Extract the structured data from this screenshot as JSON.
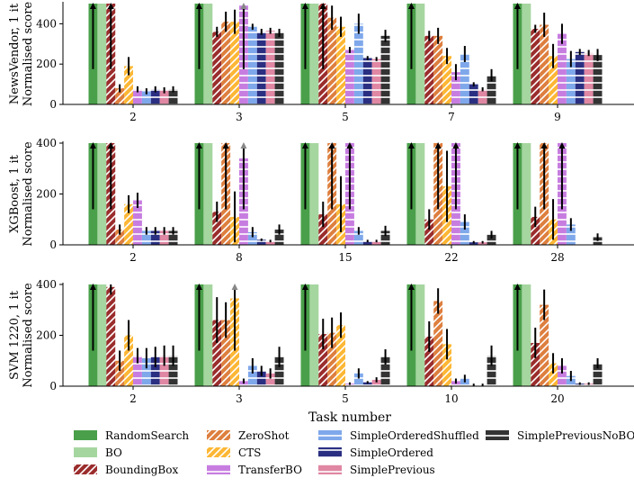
{
  "figure": {
    "xlabel": "Task number",
    "methods": [
      {
        "name": "RandomSearch",
        "color": "#4aa04a",
        "pattern": "solid"
      },
      {
        "name": "BO",
        "color": "#a6d6a0",
        "pattern": "solid"
      },
      {
        "name": "BoundingBox",
        "color": "#9b2d2d",
        "pattern": "diag"
      },
      {
        "name": "ZeroShot",
        "color": "#de7f3f",
        "pattern": "diag"
      },
      {
        "name": "CTS",
        "color": "#fdb735",
        "pattern": "diag"
      },
      {
        "name": "TransferBO",
        "color": "#c77de0",
        "pattern": "horiz"
      },
      {
        "name": "SimpleOrderedShuffled",
        "color": "#7fa8eb",
        "pattern": "horiz"
      },
      {
        "name": "SimpleOrdered",
        "color": "#2a2f82",
        "pattern": "horiz"
      },
      {
        "name": "SimplePrevious",
        "color": "#e087a3",
        "pattern": "horiz"
      },
      {
        "name": "SimplePreviousNoBO",
        "color": "#333333",
        "pattern": "horiz"
      }
    ],
    "clipped_marker_color": "#888888"
  },
  "chart_data": [
    {
      "type": "bar",
      "title": "",
      "ylabel": "NewsVendor, 1 it\nNormalised score",
      "xlabel": "",
      "ylim": [
        0,
        500
      ],
      "yticks": [
        0,
        200,
        400
      ],
      "categories": [
        "2",
        "3",
        "5",
        "7",
        "9"
      ],
      "series": [
        {
          "name": "RandomSearch",
          "values": [
            500,
            500,
            500,
            500,
            500
          ],
          "errors": [
            0,
            0,
            0,
            0,
            0
          ],
          "clipped": [
            true,
            true,
            true,
            true,
            true
          ]
        },
        {
          "name": "BO",
          "values": [
            500,
            500,
            500,
            500,
            500
          ],
          "errors": [
            0,
            0,
            0,
            0,
            0
          ],
          "clipped": [
            false,
            false,
            false,
            false,
            false
          ]
        },
        {
          "name": "BoundingBox",
          "values": [
            500,
            360,
            500,
            340,
            375
          ],
          "errors": [
            0,
            25,
            0,
            25,
            20
          ],
          "clipped": [
            true,
            false,
            true,
            false,
            false
          ]
        },
        {
          "name": "ZeroShot",
          "values": [
            80,
            410,
            430,
            340,
            395
          ],
          "errors": [
            20,
            50,
            60,
            40,
            60
          ],
          "clipped": [
            false,
            false,
            false,
            false,
            false
          ]
        },
        {
          "name": "CTS",
          "values": [
            190,
            410,
            385,
            240,
            240
          ],
          "errors": [
            45,
            60,
            50,
            40,
            60
          ],
          "clipped": [
            false,
            false,
            false,
            false,
            false
          ]
        },
        {
          "name": "TransferBO",
          "values": [
            75,
            490,
            270,
            160,
            350
          ],
          "errors": [
            15,
            0,
            15,
            40,
            50
          ],
          "clipped": [
            false,
            true,
            false,
            false,
            false
          ]
        },
        {
          "name": "SimpleOrderedShuffled",
          "values": [
            65,
            385,
            400,
            250,
            225
          ],
          "errors": [
            15,
            15,
            50,
            40,
            40
          ],
          "clipped": [
            false,
            false,
            false,
            false,
            false
          ]
        },
        {
          "name": "SimpleOrdered",
          "values": [
            75,
            360,
            230,
            100,
            260
          ],
          "errors": [
            15,
            15,
            10,
            10,
            15
          ],
          "clipped": [
            false,
            false,
            false,
            false,
            false
          ]
        },
        {
          "name": "SimplePrevious",
          "values": [
            70,
            365,
            225,
            75,
            255
          ],
          "errors": [
            15,
            15,
            10,
            10,
            15
          ],
          "clipped": [
            false,
            false,
            false,
            false,
            false
          ]
        },
        {
          "name": "SimplePreviousNoBO",
          "values": [
            75,
            355,
            340,
            145,
            245
          ],
          "errors": [
            15,
            20,
            30,
            30,
            30
          ],
          "clipped": [
            false,
            false,
            false,
            false,
            false
          ]
        }
      ]
    },
    {
      "type": "bar",
      "title": "",
      "ylabel": "XGBoost, 1 it\nNormalised score",
      "xlabel": "",
      "ylim": [
        0,
        400
      ],
      "yticks": [
        0,
        200,
        400
      ],
      "categories": [
        "2",
        "8",
        "15",
        "22",
        "28"
      ],
      "series": [
        {
          "name": "RandomSearch",
          "values": [
            400,
            400,
            400,
            400,
            400
          ],
          "errors": [
            0,
            0,
            0,
            0,
            0
          ],
          "clipped": [
            true,
            true,
            true,
            true,
            true
          ]
        },
        {
          "name": "BO",
          "values": [
            400,
            400,
            400,
            400,
            400
          ],
          "errors": [
            0,
            0,
            0,
            0,
            0
          ],
          "clipped": [
            false,
            false,
            false,
            false,
            false
          ]
        },
        {
          "name": "BoundingBox",
          "values": [
            400,
            130,
            120,
            100,
            110
          ],
          "errors": [
            0,
            40,
            50,
            40,
            40
          ],
          "clipped": [
            true,
            false,
            false,
            false,
            false
          ]
        },
        {
          "name": "ZeroShot",
          "values": [
            60,
            400,
            400,
            400,
            400
          ],
          "errors": [
            20,
            0,
            0,
            0,
            0
          ],
          "clipped": [
            false,
            true,
            true,
            true,
            true
          ]
        },
        {
          "name": "CTS",
          "values": [
            160,
            110,
            160,
            230,
            100
          ],
          "errors": [
            35,
            100,
            110,
            140,
            80
          ],
          "clipped": [
            false,
            false,
            false,
            false,
            false
          ]
        },
        {
          "name": "TransferBO",
          "values": [
            175,
            340,
            400,
            400,
            400
          ],
          "errors": [
            30,
            60,
            0,
            0,
            0
          ],
          "clipped": [
            false,
            true,
            true,
            true,
            true
          ]
        },
        {
          "name": "SimpleOrderedShuffled",
          "values": [
            55,
            50,
            55,
            90,
            80
          ],
          "errors": [
            15,
            20,
            15,
            30,
            25
          ],
          "clipped": [
            false,
            false,
            false,
            false,
            false
          ]
        },
        {
          "name": "SimpleOrdered",
          "values": [
            55,
            20,
            15,
            10,
            0
          ],
          "errors": [
            15,
            5,
            5,
            5,
            0
          ],
          "clipped": [
            false,
            false,
            false,
            false,
            false
          ]
        },
        {
          "name": "SimplePrevious",
          "values": [
            55,
            15,
            15,
            10,
            0
          ],
          "errors": [
            15,
            5,
            5,
            5,
            0
          ],
          "clipped": [
            false,
            false,
            false,
            false,
            false
          ]
        },
        {
          "name": "SimplePreviousNoBO",
          "values": [
            55,
            60,
            55,
            40,
            30
          ],
          "errors": [
            15,
            20,
            20,
            15,
            15
          ],
          "clipped": [
            false,
            false,
            false,
            false,
            false
          ]
        }
      ]
    },
    {
      "type": "bar",
      "title": "",
      "ylabel": "SVM 1220, 1 it\nNormalised score",
      "xlabel": "Task number",
      "ylim": [
        0,
        400
      ],
      "yticks": [
        0,
        200,
        400
      ],
      "categories": [
        "2",
        "3",
        "5",
        "10",
        "20"
      ],
      "series": [
        {
          "name": "RandomSearch",
          "values": [
            400,
            400,
            400,
            400,
            400
          ],
          "errors": [
            0,
            0,
            0,
            0,
            0
          ],
          "clipped": [
            true,
            true,
            true,
            true,
            true
          ]
        },
        {
          "name": "BO",
          "values": [
            400,
            400,
            400,
            400,
            400
          ],
          "errors": [
            0,
            0,
            0,
            0,
            0
          ],
          "clipped": [
            false,
            false,
            false,
            false,
            false
          ]
        },
        {
          "name": "BoundingBox",
          "values": [
            390,
            260,
            205,
            195,
            170
          ],
          "errors": [
            30,
            90,
            60,
            60,
            60
          ],
          "clipped": [
            false,
            false,
            false,
            false,
            false
          ]
        },
        {
          "name": "ZeroShot",
          "values": [
            100,
            260,
            210,
            335,
            320
          ],
          "errors": [
            40,
            70,
            60,
            50,
            60
          ],
          "clipped": [
            false,
            false,
            false,
            false,
            false
          ]
        },
        {
          "name": "CTS",
          "values": [
            200,
            345,
            240,
            165,
            90
          ],
          "errors": [
            60,
            60,
            50,
            60,
            40
          ],
          "clipped": [
            false,
            true,
            false,
            false,
            false
          ]
        },
        {
          "name": "TransferBO",
          "values": [
            120,
            20,
            10,
            20,
            80
          ],
          "errors": [
            30,
            10,
            5,
            10,
            30
          ],
          "clipped": [
            false,
            false,
            false,
            false,
            false
          ]
        },
        {
          "name": "SimpleOrderedShuffled",
          "values": [
            110,
            80,
            50,
            30,
            40
          ],
          "errors": [
            40,
            30,
            20,
            15,
            20
          ],
          "clipped": [
            false,
            false,
            false,
            false,
            false
          ]
        },
        {
          "name": "SimpleOrdered",
          "values": [
            115,
            60,
            15,
            5,
            10
          ],
          "errors": [
            40,
            20,
            5,
            5,
            5
          ],
          "clipped": [
            false,
            false,
            false,
            false,
            false
          ]
        },
        {
          "name": "SimplePrevious",
          "values": [
            120,
            50,
            25,
            5,
            10
          ],
          "errors": [
            40,
            20,
            10,
            5,
            5
          ],
          "clipped": [
            false,
            false,
            false,
            false,
            false
          ]
        },
        {
          "name": "SimplePreviousNoBO",
          "values": [
            120,
            115,
            115,
            120,
            90
          ],
          "errors": [
            40,
            40,
            30,
            40,
            20
          ],
          "clipped": [
            false,
            false,
            false,
            false,
            false
          ]
        }
      ]
    }
  ]
}
